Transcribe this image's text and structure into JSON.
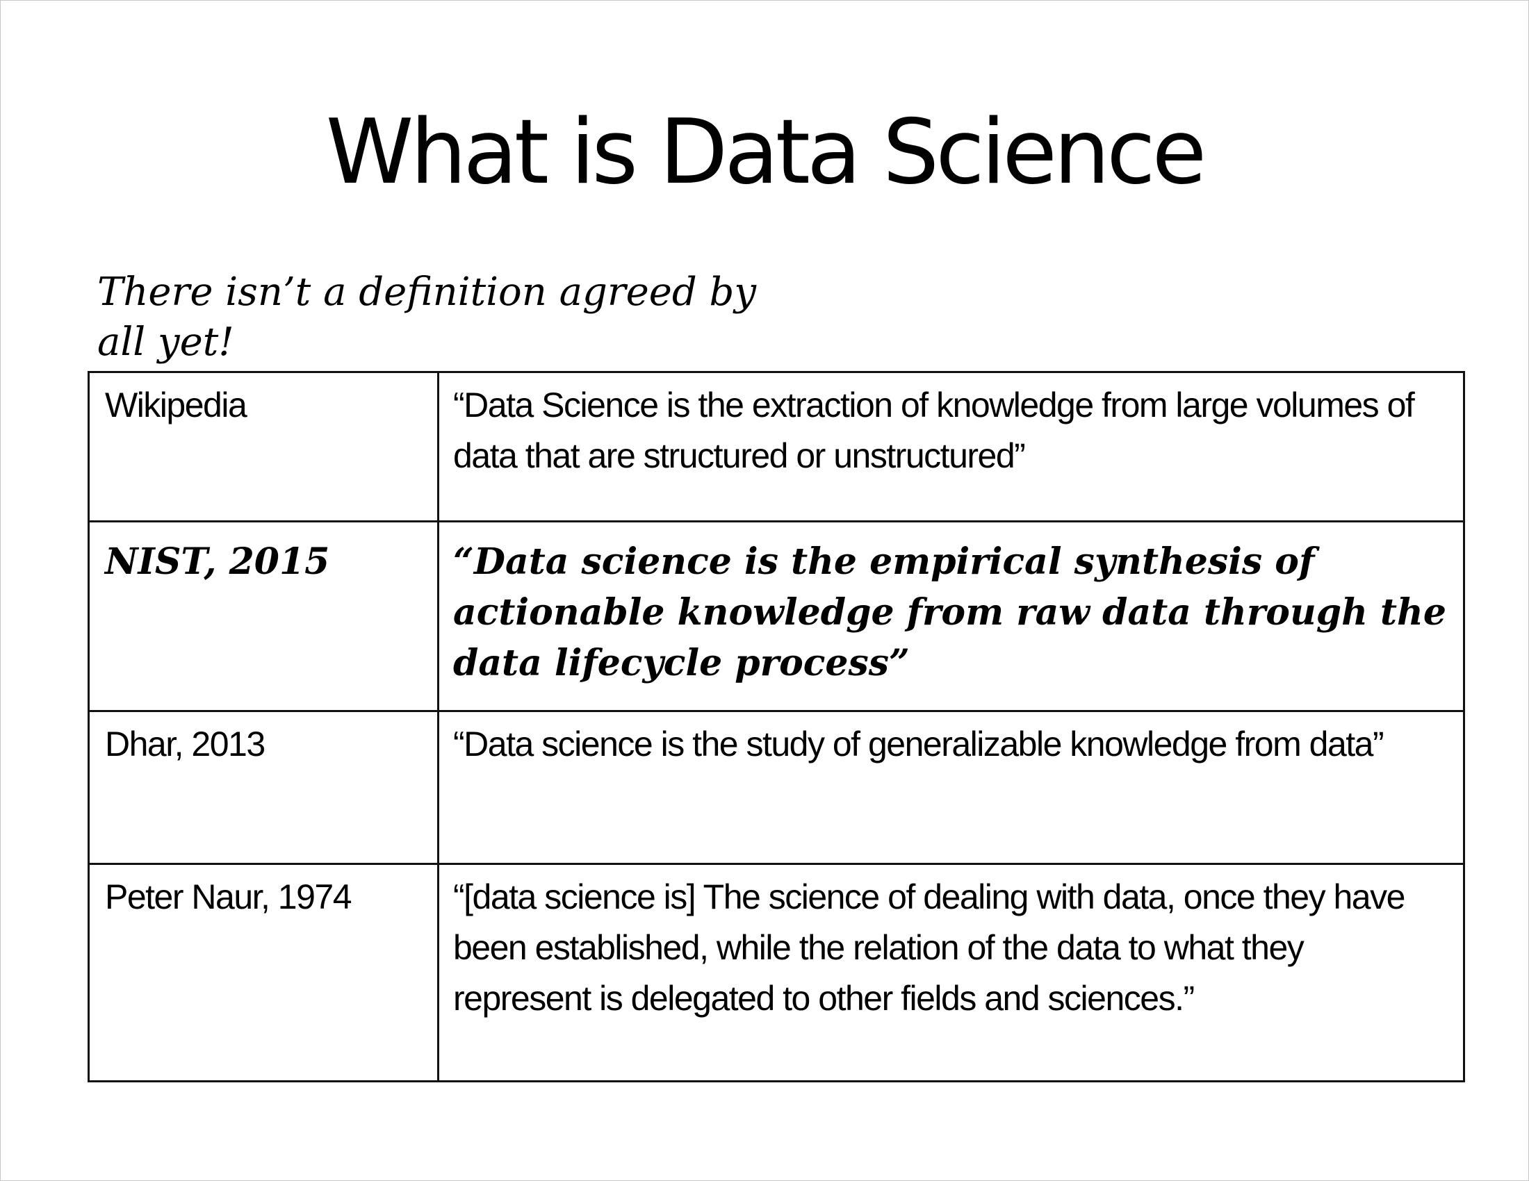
{
  "slide": {
    "title": "What is Data Science",
    "subtitle_line1": "There isn’t a definition agreed by",
    "subtitle_line2": "all yet!"
  },
  "definitions": [
    {
      "source": "Wikipedia",
      "quote": "“Data Science is the extraction of knowledge from large volumes of data that are structured or unstructured”"
    },
    {
      "source": "NIST, 2015",
      "quote": "“Data science is the empirical synthesis of actionable knowledge from raw data through the data lifecycle process”"
    },
    {
      "source": "Dhar, 2013",
      "quote": "“Data science is the study of generalizable knowledge from data”"
    },
    {
      "source": "Peter Naur, 1974",
      "quote": "“[data science is] The science of dealing with data, once they have been established, while the relation of the data to what they represent is delegated to other fields and sciences.”"
    }
  ]
}
